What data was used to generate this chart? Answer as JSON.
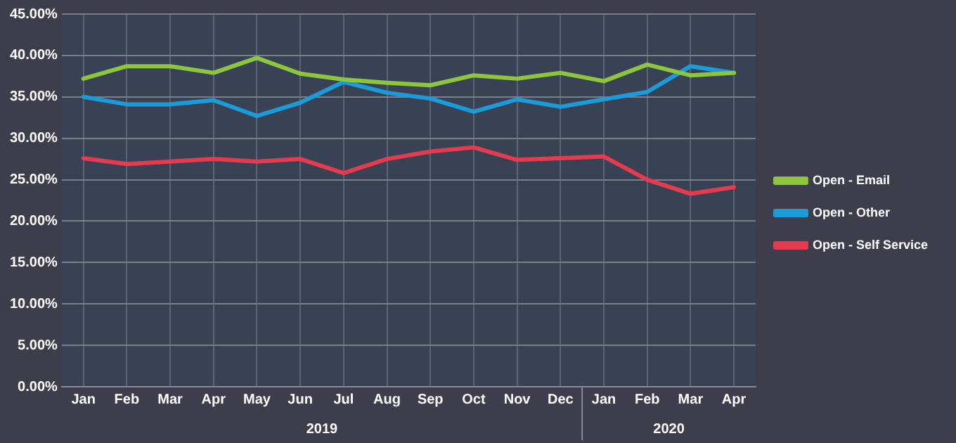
{
  "chart_data": {
    "type": "line",
    "categories": [
      "Jan",
      "Feb",
      "Mar",
      "Apr",
      "May",
      "Jun",
      "Jul",
      "Aug",
      "Sep",
      "Oct",
      "Nov",
      "Dec",
      "Jan",
      "Feb",
      "Mar",
      "Apr"
    ],
    "series": [
      {
        "name": "Open - Email",
        "color": "#8cc63f",
        "values": [
          37.2,
          38.7,
          38.7,
          37.9,
          39.7,
          37.8,
          37.1,
          36.7,
          36.4,
          37.6,
          37.2,
          37.9,
          36.9,
          38.9,
          37.6,
          37.9
        ]
      },
      {
        "name": "Open - Other",
        "color": "#1b9bd7",
        "values": [
          35.0,
          34.1,
          34.1,
          34.6,
          32.7,
          34.3,
          36.8,
          35.5,
          34.8,
          33.2,
          34.7,
          33.8,
          34.7,
          35.6,
          38.7,
          37.9
        ]
      },
      {
        "name": "Open - Self Service",
        "color": "#e53b4e",
        "values": [
          27.6,
          26.9,
          27.2,
          27.5,
          27.2,
          27.5,
          25.8,
          27.5,
          28.4,
          28.9,
          27.4,
          27.6,
          27.8,
          25.0,
          23.3,
          24.1
        ]
      }
    ],
    "ylim": [
      0,
      45
    ],
    "yticks": [
      {
        "value": 0,
        "label": "0.00%"
      },
      {
        "value": 5,
        "label": "5.00%"
      },
      {
        "value": 10,
        "label": "10.00%"
      },
      {
        "value": 15,
        "label": "15.00%"
      },
      {
        "value": 20,
        "label": "20.00%"
      },
      {
        "value": 25,
        "label": "25.00%"
      },
      {
        "value": 30,
        "label": "30.00%"
      },
      {
        "value": 35,
        "label": "35.00%"
      },
      {
        "value": 40,
        "label": "40.00%"
      },
      {
        "value": 45,
        "label": "45.00%"
      }
    ],
    "annotations": [
      "2019",
      "2020"
    ],
    "grid": true,
    "legend": "right",
    "marker": "none"
  }
}
